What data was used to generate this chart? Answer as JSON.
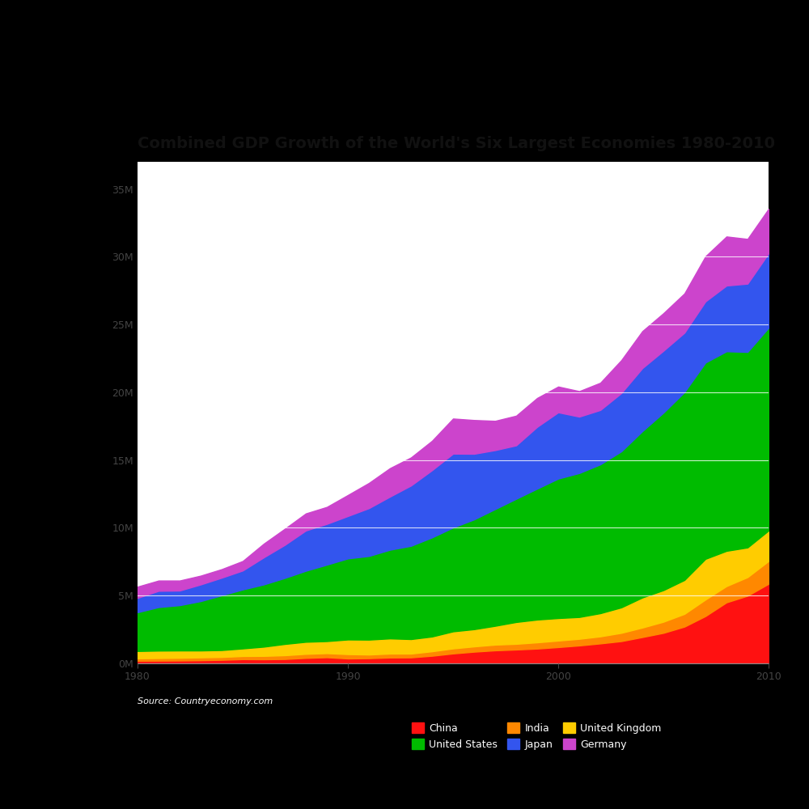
{
  "title": "Combined GDP Growth of the World's Six Largest Economies 1980-2010",
  "fig_background_color": "#000000",
  "plot_background_color": "#ffffff",
  "text_color": "#ffffff",
  "axis_text_color": "#333333",
  "grid_color": "#ffffff",
  "source_text": "Source: Countryeconomy.com",
  "years": [
    1980,
    1981,
    1982,
    1983,
    1984,
    1985,
    1986,
    1987,
    1988,
    1989,
    1990,
    1991,
    1992,
    1993,
    1994,
    1995,
    1996,
    1997,
    1998,
    1999,
    2000,
    2001,
    2002,
    2003,
    2004,
    2005,
    2006,
    2007,
    2008,
    2009,
    2010
  ],
  "series": {
    "China": {
      "color": "#ff1111",
      "values": [
        0.19,
        0.2,
        0.21,
        0.23,
        0.26,
        0.31,
        0.3,
        0.32,
        0.4,
        0.45,
        0.36,
        0.38,
        0.43,
        0.44,
        0.56,
        0.73,
        0.86,
        0.96,
        1.02,
        1.09,
        1.2,
        1.32,
        1.47,
        1.64,
        1.94,
        2.25,
        2.71,
        3.49,
        4.5,
        4.99,
        5.87
      ]
    },
    "India": {
      "color": "#ff8800",
      "values": [
        0.18,
        0.19,
        0.2,
        0.21,
        0.21,
        0.23,
        0.25,
        0.28,
        0.3,
        0.3,
        0.32,
        0.27,
        0.29,
        0.28,
        0.33,
        0.37,
        0.39,
        0.42,
        0.42,
        0.46,
        0.48,
        0.49,
        0.52,
        0.61,
        0.7,
        0.82,
        0.94,
        1.22,
        1.2,
        1.37,
        1.68
      ]
    },
    "United Kingdom": {
      "color": "#ffcc00",
      "values": [
        0.54,
        0.55,
        0.54,
        0.51,
        0.51,
        0.56,
        0.68,
        0.83,
        0.89,
        0.89,
        1.08,
        1.1,
        1.12,
        1.07,
        1.09,
        1.26,
        1.27,
        1.39,
        1.61,
        1.68,
        1.66,
        1.61,
        1.71,
        1.88,
        2.22,
        2.33,
        2.5,
        3.0,
        2.6,
        2.19,
        2.25
      ]
    },
    "United States": {
      "color": "#00bb00",
      "values": [
        2.86,
        3.21,
        3.34,
        3.64,
        4.04,
        4.35,
        4.59,
        4.87,
        5.24,
        5.64,
        5.98,
        6.17,
        6.54,
        6.88,
        7.31,
        7.66,
        8.1,
        8.61,
        9.09,
        9.66,
        10.29,
        10.62,
        10.98,
        11.51,
        12.27,
        13.09,
        13.86,
        14.48,
        14.72,
        14.42,
        14.96
      ]
    },
    "Japan": {
      "color": "#3355ee",
      "values": [
        1.06,
        1.2,
        1.08,
        1.23,
        1.3,
        1.4,
        2.0,
        2.44,
        2.97,
        3.01,
        3.13,
        3.53,
        3.92,
        4.45,
        4.96,
        5.45,
        4.84,
        4.35,
        3.94,
        4.56,
        4.89,
        4.16,
        4.01,
        4.3,
        4.65,
        4.57,
        4.38,
        4.51,
        4.85,
        5.04,
        5.49
      ]
    },
    "Germany": {
      "color": "#cc44cc",
      "values": [
        0.83,
        0.76,
        0.74,
        0.65,
        0.63,
        0.7,
        1.01,
        1.19,
        1.26,
        1.25,
        1.55,
        1.86,
        2.1,
        2.07,
        2.17,
        2.59,
        2.49,
        2.16,
        2.19,
        2.13,
        1.9,
        1.88,
        2.01,
        2.43,
        2.73,
        2.77,
        2.9,
        3.33,
        3.62,
        3.3,
        3.28
      ]
    }
  },
  "stack_order": [
    "China",
    "India",
    "United Kingdom",
    "United States",
    "Japan",
    "Germany"
  ],
  "yticks": [
    0,
    5,
    10,
    15,
    20,
    25,
    30,
    35
  ],
  "ytick_labels": [
    "0M",
    "5M",
    "10M",
    "15M",
    "20M",
    "25M",
    "30M",
    "35M"
  ],
  "xticks": [
    1980,
    1990,
    2000,
    2010
  ],
  "ylim": [
    0,
    37
  ],
  "xlim": [
    1980,
    2010
  ],
  "title_fontsize": 14,
  "tick_fontsize": 9,
  "legend_fontsize": 9,
  "source_fontsize": 8,
  "legend_labels": [
    "China",
    "United States",
    "India",
    "Japan",
    "United Kingdom",
    "Germany"
  ]
}
